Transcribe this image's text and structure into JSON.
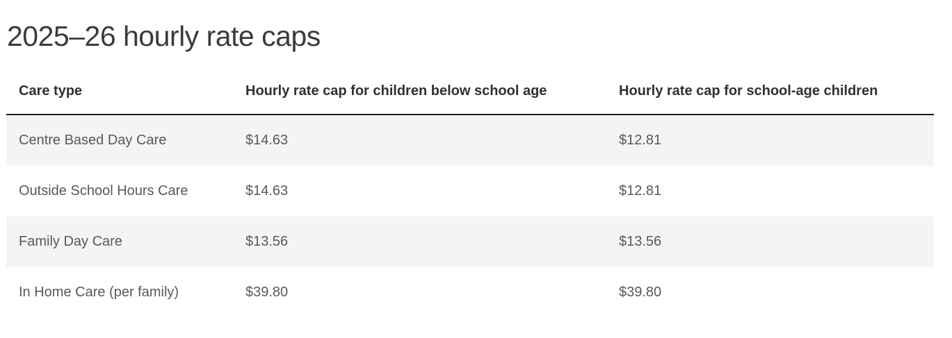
{
  "page": {
    "title": "2025–26 hourly rate caps"
  },
  "table": {
    "columns": [
      "Care type",
      "Hourly rate cap for children below school age",
      "Hourly rate cap for school-age children"
    ],
    "rows": [
      {
        "care_type": "Centre Based Day Care",
        "below_school_age": "$14.63",
        "school_age": "$12.81"
      },
      {
        "care_type": "Outside School Hours Care",
        "below_school_age": "$14.63",
        "school_age": "$12.81"
      },
      {
        "care_type": "Family Day Care",
        "below_school_age": "$13.56",
        "school_age": "$13.56"
      },
      {
        "care_type": "In Home Care (per family)",
        "below_school_age": "$39.80",
        "school_age": "$39.80"
      }
    ]
  },
  "colors": {
    "title_text": "#3b3b3b",
    "header_text": "#2d3236",
    "cell_text": "#55595c",
    "row_alt_bg": "#f4f4f4",
    "header_border": "#1a1a1a",
    "page_bg": "#ffffff"
  }
}
